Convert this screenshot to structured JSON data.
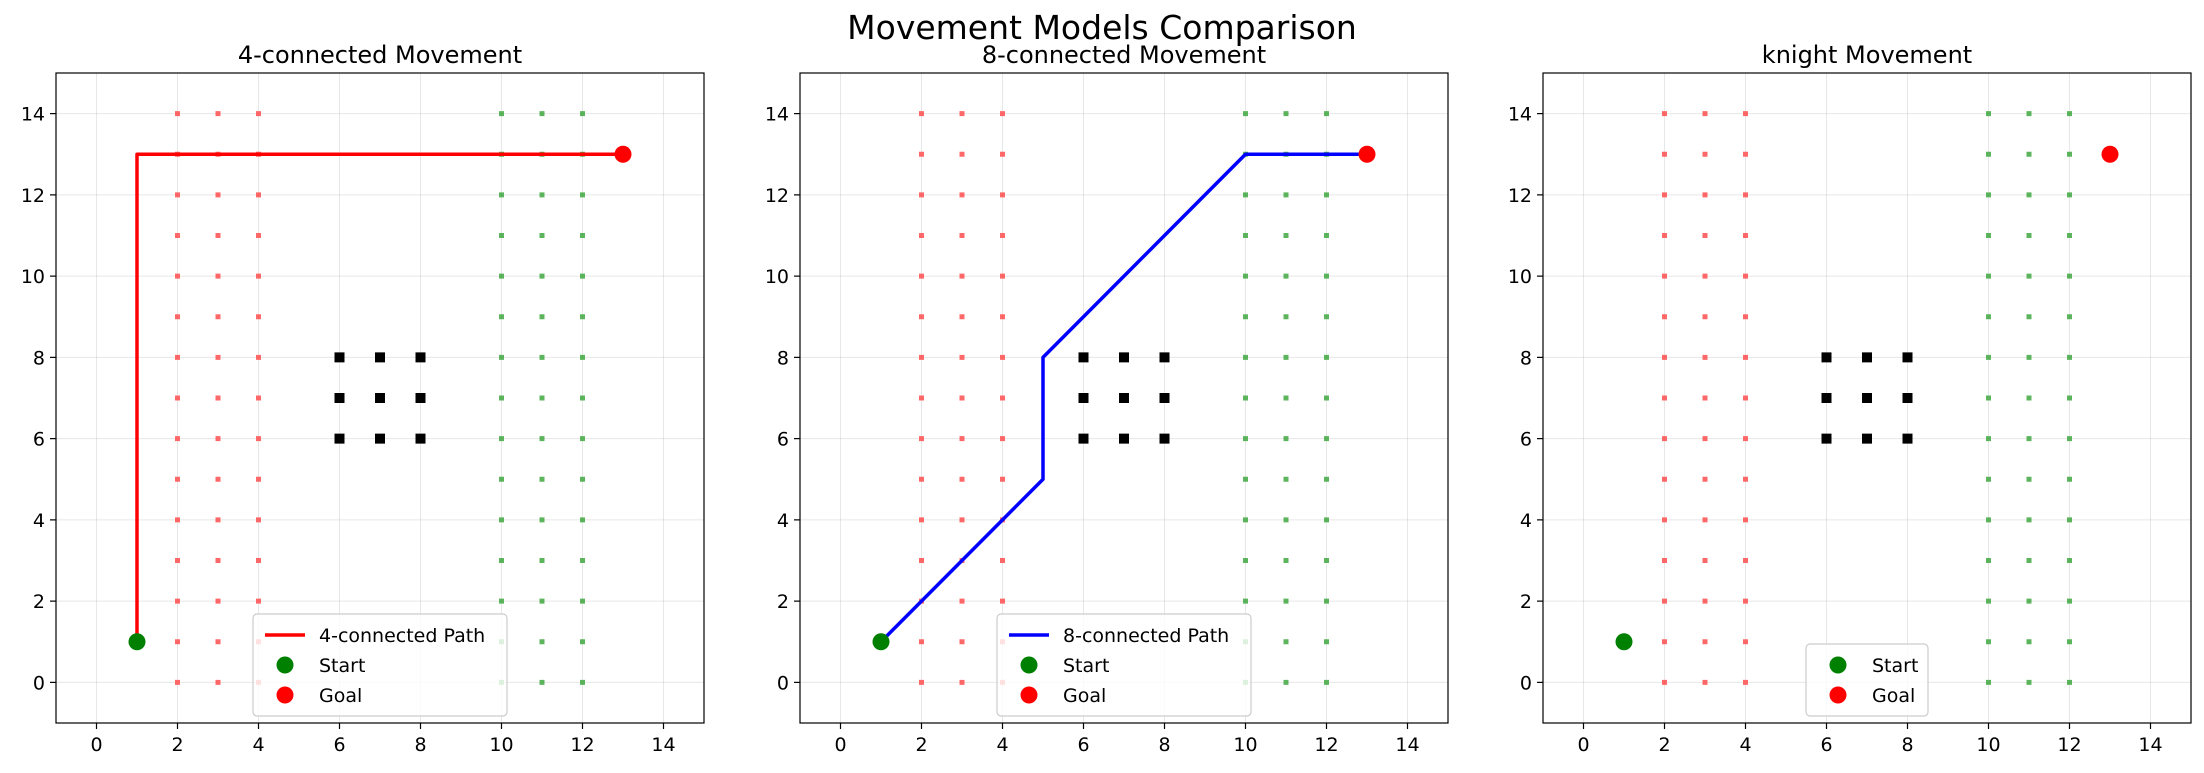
{
  "figure": {
    "suptitle": "Movement Models Comparison"
  },
  "chart_data": [
    {
      "type": "scatter",
      "title": "4-connected Movement",
      "xlim": [
        -1,
        15
      ],
      "ylim": [
        -1,
        15
      ],
      "xticks": [
        0,
        2,
        4,
        6,
        8,
        10,
        12,
        14
      ],
      "yticks": [
        0,
        2,
        4,
        6,
        8,
        10,
        12,
        14
      ],
      "grid": true,
      "legend_position": "lower center",
      "series": [
        {
          "name": "4-connected Path",
          "kind": "line",
          "color": "#ff0000",
          "points": [
            [
              1,
              1
            ],
            [
              1,
              13
            ],
            [
              13,
              13
            ]
          ]
        },
        {
          "name": "Start",
          "kind": "marker",
          "color": "#008000",
          "points": [
            [
              1,
              1
            ]
          ]
        },
        {
          "name": "Goal",
          "kind": "marker",
          "color": "#ff0000",
          "points": [
            [
              13,
              13
            ]
          ]
        }
      ],
      "grid_cells": [
        {
          "label": "obstacle",
          "color": "#000000",
          "cols": [
            6,
            7,
            8
          ],
          "rows": [
            6,
            7,
            8
          ]
        },
        {
          "label": "red-zone",
          "color": "#ff4d4d",
          "cols": [
            2,
            3,
            4
          ],
          "rows": [
            0,
            14
          ]
        },
        {
          "label": "green-zone",
          "color": "#3fa83f",
          "cols": [
            10,
            11,
            12
          ],
          "rows": [
            0,
            14
          ]
        }
      ]
    },
    {
      "type": "scatter",
      "title": "8-connected Movement",
      "xlim": [
        -1,
        15
      ],
      "ylim": [
        -1,
        15
      ],
      "xticks": [
        0,
        2,
        4,
        6,
        8,
        10,
        12,
        14
      ],
      "yticks": [
        0,
        2,
        4,
        6,
        8,
        10,
        12,
        14
      ],
      "grid": true,
      "legend_position": "lower center",
      "series": [
        {
          "name": "8-connected Path",
          "kind": "line",
          "color": "#0000ff",
          "points": [
            [
              1,
              1
            ],
            [
              2,
              2
            ],
            [
              3,
              3
            ],
            [
              4,
              4
            ],
            [
              5,
              5
            ],
            [
              5,
              6
            ],
            [
              5,
              7
            ],
            [
              5,
              8
            ],
            [
              6,
              9
            ],
            [
              7,
              10
            ],
            [
              8,
              11
            ],
            [
              9,
              12
            ],
            [
              10,
              13
            ],
            [
              11,
              13
            ],
            [
              12,
              13
            ],
            [
              13,
              13
            ]
          ]
        },
        {
          "name": "Start",
          "kind": "marker",
          "color": "#008000",
          "points": [
            [
              1,
              1
            ]
          ]
        },
        {
          "name": "Goal",
          "kind": "marker",
          "color": "#ff0000",
          "points": [
            [
              13,
              13
            ]
          ]
        }
      ],
      "grid_cells": [
        {
          "label": "obstacle",
          "color": "#000000",
          "cols": [
            6,
            7,
            8
          ],
          "rows": [
            6,
            7,
            8
          ]
        },
        {
          "label": "red-zone",
          "color": "#ff4d4d",
          "cols": [
            2,
            3,
            4
          ],
          "rows": [
            0,
            14
          ]
        },
        {
          "label": "green-zone",
          "color": "#3fa83f",
          "cols": [
            10,
            11,
            12
          ],
          "rows": [
            0,
            14
          ]
        }
      ]
    },
    {
      "type": "scatter",
      "title": "knight Movement",
      "xlim": [
        -1,
        15
      ],
      "ylim": [
        -1,
        15
      ],
      "xticks": [
        0,
        2,
        4,
        6,
        8,
        10,
        12,
        14
      ],
      "yticks": [
        0,
        2,
        4,
        6,
        8,
        10,
        12,
        14
      ],
      "grid": true,
      "legend_position": "lower center",
      "series": [
        {
          "name": "Start",
          "kind": "marker",
          "color": "#008000",
          "points": [
            [
              1,
              1
            ]
          ]
        },
        {
          "name": "Goal",
          "kind": "marker",
          "color": "#ff0000",
          "points": [
            [
              13,
              13
            ]
          ]
        }
      ],
      "grid_cells": [
        {
          "label": "obstacle",
          "color": "#000000",
          "cols": [
            6,
            7,
            8
          ],
          "rows": [
            6,
            7,
            8
          ]
        },
        {
          "label": "red-zone",
          "color": "#ff4d4d",
          "cols": [
            2,
            3,
            4
          ],
          "rows": [
            0,
            14
          ]
        },
        {
          "label": "green-zone",
          "color": "#3fa83f",
          "cols": [
            10,
            11,
            12
          ],
          "rows": [
            0,
            14
          ]
        }
      ]
    }
  ]
}
